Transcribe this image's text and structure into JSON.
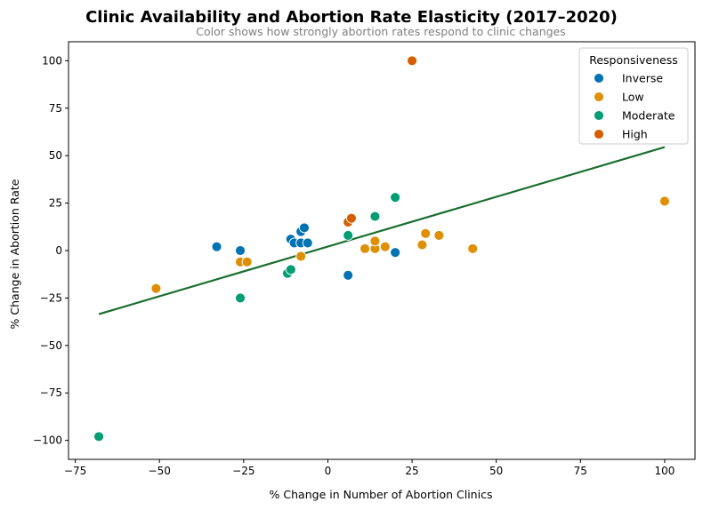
{
  "chart_data": {
    "type": "scatter",
    "title": "Clinic Availability and Abortion Rate Elasticity (2017–2020)",
    "subtitle": "Color shows how strongly abortion rates respond to clinic changes",
    "xlabel": "% Change in Number of Abortion Clinics",
    "ylabel": "% Change in Abortion Rate",
    "xlim": [
      -77,
      109
    ],
    "ylim": [
      -110,
      110
    ],
    "xticks": [
      -75,
      -50,
      -25,
      0,
      25,
      50,
      75,
      100
    ],
    "yticks": [
      -100,
      -75,
      -50,
      -25,
      0,
      25,
      50,
      75,
      100
    ],
    "xtick_labels": [
      "−75",
      "−50",
      "−25",
      "0",
      "25",
      "50",
      "75",
      "100"
    ],
    "ytick_labels": [
      "−100",
      "−75",
      "−50",
      "−25",
      "0",
      "25",
      "50",
      "75",
      "100"
    ],
    "grid": false,
    "legend": {
      "title": "Responsiveness",
      "placement": "top-right",
      "entries": [
        {
          "label": "Inverse",
          "color": "#0173b2"
        },
        {
          "label": "Low",
          "color": "#de8f05"
        },
        {
          "label": "Moderate",
          "color": "#029e73"
        },
        {
          "label": "High",
          "color": "#d55e00"
        }
      ]
    },
    "series": [
      {
        "color": "#0173b2",
        "points": [
          {
            "x": -33,
            "y": 2
          },
          {
            "x": -26,
            "y": 0
          },
          {
            "x": -11,
            "y": 6
          },
          {
            "x": -10,
            "y": 4
          },
          {
            "x": -8,
            "y": 4
          },
          {
            "x": -8,
            "y": 10
          },
          {
            "x": -7,
            "y": 12
          },
          {
            "x": -6,
            "y": 4
          },
          {
            "x": 6,
            "y": -13
          },
          {
            "x": 20,
            "y": -1
          }
        ]
      },
      {
        "color": "#de8f05",
        "points": [
          {
            "x": -51,
            "y": -20
          },
          {
            "x": -26,
            "y": -6
          },
          {
            "x": -24,
            "y": -6
          },
          {
            "x": -8,
            "y": -3
          },
          {
            "x": 11,
            "y": 1
          },
          {
            "x": 14,
            "y": 1
          },
          {
            "x": 14,
            "y": 5
          },
          {
            "x": 17,
            "y": 2
          },
          {
            "x": 28,
            "y": 3
          },
          {
            "x": 29,
            "y": 9
          },
          {
            "x": 33,
            "y": 8
          },
          {
            "x": 43,
            "y": 1
          },
          {
            "x": 100,
            "y": 26
          }
        ]
      },
      {
        "color": "#029e73",
        "points": [
          {
            "x": -68,
            "y": -98
          },
          {
            "x": -26,
            "y": -25
          },
          {
            "x": -12,
            "y": -12
          },
          {
            "x": -11,
            "y": -10
          },
          {
            "x": 6,
            "y": 8
          },
          {
            "x": 14,
            "y": 18
          },
          {
            "x": 20,
            "y": 28
          }
        ]
      },
      {
        "color": "#d55e00",
        "points": [
          {
            "x": 6,
            "y": 15
          },
          {
            "x": 7,
            "y": 17
          },
          {
            "x": 25,
            "y": 100
          }
        ]
      }
    ],
    "trend_line": {
      "color": "#1a6e30",
      "points": [
        {
          "x": -68,
          "y": -33.5
        },
        {
          "x": 100,
          "y": 54.5
        }
      ]
    }
  }
}
